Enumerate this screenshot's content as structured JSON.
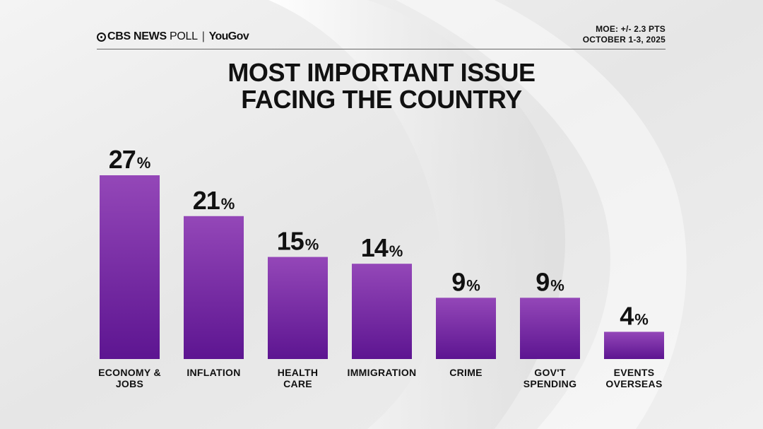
{
  "header": {
    "brand_primary": "CBS NEWS",
    "brand_secondary": "POLL",
    "brand_partner": "YouGov",
    "moe": "MOE: +/- 2.3 PTS",
    "dates": "OCTOBER 1-3, 2025"
  },
  "colors": {
    "bar_top": "#9447b8",
    "bar_bottom": "#5d1591",
    "text": "#111111"
  },
  "chart_data": {
    "type": "bar",
    "title_lines": [
      "MOST IMPORTANT ISSUE",
      "FACING THE COUNTRY"
    ],
    "categories": [
      [
        "ECONOMY &",
        "JOBS"
      ],
      [
        "INFLATION"
      ],
      [
        "HEALTH",
        "CARE"
      ],
      [
        "IMMIGRATION"
      ],
      [
        "CRIME"
      ],
      [
        "GOV'T",
        "SPENDING"
      ],
      [
        "EVENTS",
        "OVERSEAS"
      ]
    ],
    "values": [
      27,
      21,
      15,
      14,
      9,
      9,
      4
    ],
    "value_suffix": "%",
    "ylim": [
      0,
      27
    ],
    "grid": false,
    "legend": "none"
  }
}
